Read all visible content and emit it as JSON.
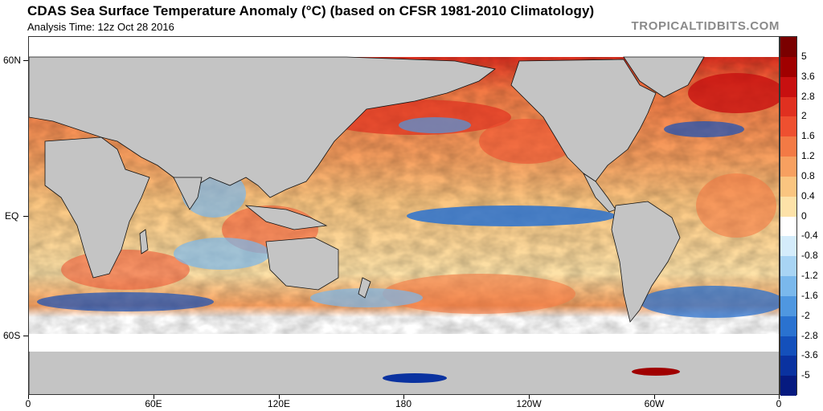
{
  "header": {
    "title": "CDAS Sea Surface Temperature Anomaly (°C) (based on CFSR 1981-2010 Climatology)",
    "subtitle": "Analysis Time: 12z Oct 28 2016",
    "brand": "TROPICALTIDBITS.COM"
  },
  "axes": {
    "y_labels": [
      "60N",
      "EQ",
      "60S"
    ],
    "x_labels": [
      "0",
      "60E",
      "120E",
      "180",
      "120W",
      "60W",
      "0"
    ]
  },
  "colorbar": {
    "labels": [
      "5",
      "3.6",
      "2.8",
      "2",
      "1.6",
      "1.2",
      "0.8",
      "0.4",
      "0",
      "-0.4",
      "-0.8",
      "-1.2",
      "-1.6",
      "-2",
      "-2.8",
      "-3.6",
      "-5"
    ],
    "colors": [
      "#7a0000",
      "#a00000",
      "#c81010",
      "#e03020",
      "#ee5030",
      "#f37a45",
      "#f7a060",
      "#fac580",
      "#fde2a8",
      "#ffffff",
      "#d4ecfb",
      "#a8d4f4",
      "#7ab8ec",
      "#4f97e0",
      "#2a72d0",
      "#1450bb",
      "#0a32a0",
      "#061a80"
    ]
  },
  "map_colors": {
    "land": "#c4c4c4",
    "border": "#111111",
    "ice": "#ffffff"
  }
}
